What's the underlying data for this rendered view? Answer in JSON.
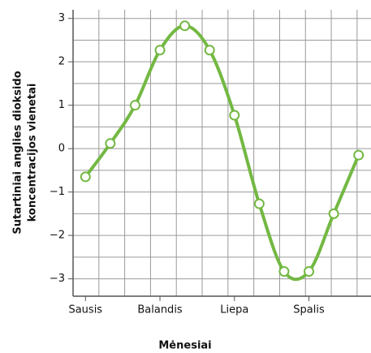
{
  "chart_data": {
    "type": "line",
    "xlabel": "Mėnesiai",
    "ylabel": [
      "Sutartiniai anglies dioksido",
      "koncentracijos vienetai"
    ],
    "categories": [
      "Sausis",
      null,
      null,
      "Balandis",
      null,
      null,
      "Liepa",
      null,
      null,
      "Spalis",
      null,
      null
    ],
    "series": [
      {
        "color": "#73b843",
        "values": [
          -0.65,
          0.12,
          1.0,
          2.27,
          2.83,
          2.27,
          0.77,
          -1.27,
          -2.83,
          -2.83,
          -1.5,
          -0.15
        ]
      }
    ],
    "ylim": [
      -3.4,
      3.2
    ],
    "yticks": [
      {
        "value": -3,
        "label": "−3"
      },
      {
        "value": -2,
        "label": "−2"
      },
      {
        "value": -1,
        "label": "−1"
      },
      0,
      1,
      2,
      3
    ],
    "grid": true
  }
}
